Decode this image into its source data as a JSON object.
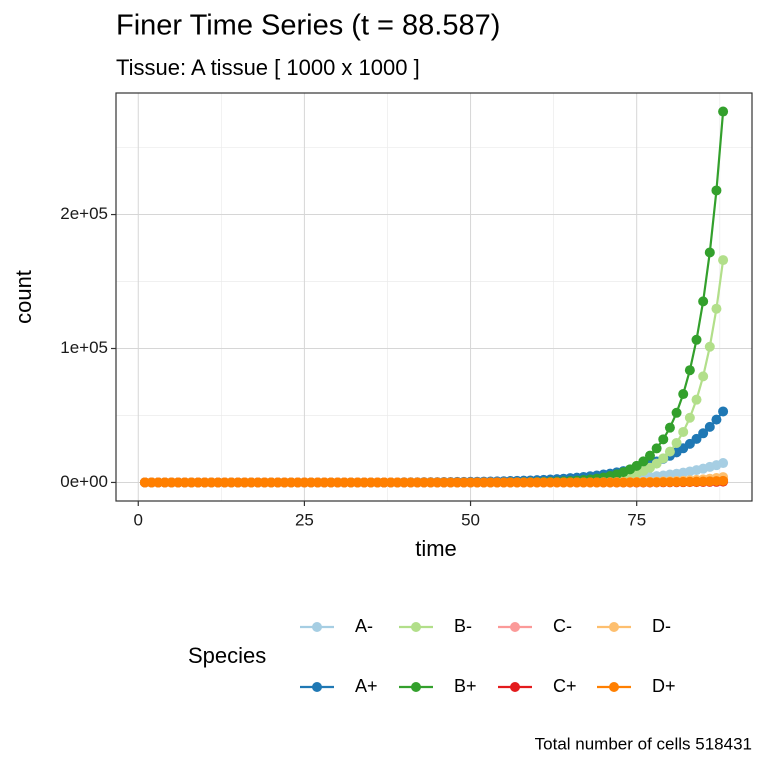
{
  "chart_data": {
    "type": "line",
    "title": "Finer Time Series (t = 88.587)",
    "subtitle": "Tissue: A tissue [ 1000 x 1000 ]",
    "x_label": "time",
    "y_label": "count",
    "legend_title": "Species",
    "caption": "Total number of cells 518431",
    "xlim": [
      -3.35,
      92.35
    ],
    "xticks": [
      0,
      25,
      50,
      75
    ],
    "xminor": [
      12.5,
      37.5,
      62.5,
      87.5
    ],
    "ylim": [
      -13845,
      290745
    ],
    "yticks": [
      {
        "value": 0,
        "label": "0e+00"
      },
      {
        "value": 100000,
        "label": "1e+05"
      },
      {
        "value": 200000,
        "label": "2e+05"
      }
    ],
    "yminor": [
      50000,
      150000,
      250000
    ],
    "grid": true,
    "x": [
      1,
      2,
      3,
      4,
      5,
      6,
      7,
      8,
      9,
      10,
      11,
      12,
      13,
      14,
      15,
      16,
      17,
      18,
      19,
      20,
      21,
      22,
      23,
      24,
      25,
      26,
      27,
      28,
      29,
      30,
      31,
      32,
      33,
      34,
      35,
      36,
      37,
      38,
      39,
      40,
      41,
      42,
      43,
      44,
      45,
      46,
      47,
      48,
      49,
      50,
      51,
      52,
      53,
      54,
      55,
      56,
      57,
      58,
      59,
      60,
      61,
      62,
      63,
      64,
      65,
      66,
      67,
      68,
      69,
      70,
      71,
      72,
      73,
      74,
      75,
      76,
      77,
      78,
      79,
      80,
      81,
      82,
      83,
      84,
      85,
      86,
      87,
      88
    ],
    "series": [
      {
        "name": "A-",
        "color": "#a6cee3",
        "values": [
          0,
          0,
          0,
          0,
          0,
          0,
          0,
          0,
          0,
          0,
          0,
          0,
          0,
          0,
          0,
          0,
          0,
          0,
          0,
          0,
          0,
          0,
          0,
          0,
          0,
          0,
          0,
          0,
          0,
          0,
          0,
          0,
          0,
          0,
          0,
          0,
          0,
          0,
          0,
          0,
          0,
          0,
          0,
          0,
          0,
          0,
          0,
          0,
          0,
          200,
          220,
          250,
          280,
          310,
          350,
          390,
          430,
          480,
          540,
          610,
          680,
          760,
          850,
          960,
          1070,
          1200,
          1350,
          1500,
          1700,
          1900,
          2100,
          2400,
          2700,
          3000,
          3300,
          3700,
          4200,
          4700,
          5200,
          5900,
          6500,
          7300,
          8200,
          9200,
          10300,
          11600,
          12900,
          14500
        ]
      },
      {
        "name": "A+",
        "color": "#1f78b4",
        "values": [
          0,
          0,
          0,
          0,
          0,
          0,
          0,
          0,
          0,
          0,
          0,
          0,
          0,
          0,
          0,
          0,
          0,
          0,
          0,
          0,
          0,
          0,
          0,
          0,
          0,
          0,
          0,
          0,
          0,
          0,
          0,
          0,
          0,
          0,
          0,
          0,
          0,
          0,
          0,
          150,
          170,
          190,
          210,
          240,
          270,
          310,
          350,
          400,
          450,
          510,
          570,
          650,
          730,
          820,
          930,
          1050,
          1200,
          1350,
          1500,
          1700,
          1950,
          2200,
          2500,
          2800,
          3200,
          3600,
          4100,
          4600,
          5200,
          5900,
          6600,
          7500,
          8500,
          9600,
          10800,
          12200,
          13800,
          15600,
          17700,
          19900,
          22500,
          25500,
          28800,
          32500,
          36700,
          41500,
          46900,
          53000
        ]
      },
      {
        "name": "B-",
        "color": "#b2df8a",
        "values": [
          0,
          0,
          0,
          0,
          0,
          0,
          0,
          0,
          0,
          0,
          0,
          0,
          0,
          0,
          0,
          0,
          0,
          0,
          0,
          0,
          0,
          0,
          0,
          0,
          0,
          0,
          0,
          0,
          0,
          0,
          0,
          0,
          0,
          0,
          0,
          0,
          0,
          0,
          0,
          0,
          0,
          0,
          0,
          0,
          0,
          0,
          0,
          0,
          0,
          0,
          0,
          0,
          0,
          0,
          0,
          0,
          0,
          100,
          130,
          170,
          210,
          270,
          350,
          450,
          570,
          730,
          930,
          1200,
          1500,
          1950,
          2500,
          3200,
          4100,
          5200,
          6700,
          8600,
          11000,
          14100,
          18000,
          23000,
          29500,
          37700,
          48300,
          61800,
          79200,
          101300,
          129700,
          166000
        ]
      },
      {
        "name": "B+",
        "color": "#33a02c",
        "values": [
          0,
          0,
          0,
          0,
          0,
          0,
          0,
          0,
          0,
          0,
          0,
          0,
          0,
          0,
          0,
          0,
          0,
          0,
          0,
          0,
          0,
          0,
          0,
          0,
          0,
          0,
          0,
          0,
          0,
          0,
          0,
          0,
          0,
          0,
          0,
          0,
          0,
          0,
          0,
          0,
          0,
          0,
          0,
          0,
          0,
          0,
          0,
          0,
          0,
          0,
          0,
          0,
          0,
          0,
          100,
          130,
          170,
          210,
          270,
          340,
          430,
          550,
          700,
          900,
          1100,
          1400,
          1800,
          2300,
          2900,
          3700,
          4800,
          6000,
          7700,
          9800,
          12400,
          15700,
          20000,
          25400,
          32200,
          40900,
          52000,
          66000,
          83800,
          106500,
          135200,
          171700,
          218000,
          276900
        ]
      },
      {
        "name": "C-",
        "color": "#fb9a99",
        "values": [
          0,
          0,
          0,
          0,
          0,
          0,
          0,
          0,
          0,
          0,
          0,
          0,
          0,
          0,
          0,
          0,
          0,
          0,
          0,
          0,
          0,
          0,
          0,
          0,
          0,
          0,
          0,
          0,
          0,
          0,
          0,
          0,
          0,
          0,
          0,
          0,
          0,
          0,
          0,
          0,
          0,
          0,
          0,
          0,
          0,
          0,
          0,
          0,
          0,
          0,
          0,
          0,
          0,
          0,
          0,
          0,
          0,
          0,
          0,
          0,
          0,
          0,
          0,
          0,
          0,
          0,
          0,
          0,
          0,
          90,
          110,
          130,
          160,
          190,
          230,
          280,
          330,
          400,
          480,
          580,
          690,
          830,
          1000,
          1200,
          1400,
          1700,
          2100,
          2500
        ]
      },
      {
        "name": "C+",
        "color": "#e31a1c",
        "values": [
          0,
          0,
          0,
          0,
          0,
          0,
          0,
          0,
          0,
          0,
          0,
          0,
          0,
          0,
          0,
          0,
          0,
          0,
          0,
          0,
          0,
          0,
          0,
          0,
          0,
          0,
          0,
          0,
          0,
          0,
          0,
          0,
          0,
          0,
          0,
          0,
          0,
          0,
          0,
          0,
          0,
          0,
          0,
          0,
          0,
          0,
          0,
          0,
          0,
          0,
          0,
          0,
          0,
          0,
          0,
          0,
          0,
          0,
          0,
          0,
          0,
          0,
          0,
          0,
          0,
          0,
          0,
          0,
          0,
          0,
          0,
          0,
          0,
          0,
          0,
          0,
          0,
          100,
          120,
          140,
          170,
          200,
          240,
          290,
          350,
          420,
          500,
          600
        ]
      },
      {
        "name": "D-",
        "color": "#fdbf6f",
        "values": [
          0,
          0,
          0,
          0,
          0,
          0,
          0,
          0,
          0,
          0,
          0,
          0,
          0,
          0,
          0,
          0,
          0,
          0,
          0,
          0,
          0,
          0,
          0,
          0,
          0,
          0,
          0,
          0,
          0,
          0,
          0,
          0,
          0,
          0,
          0,
          0,
          0,
          0,
          0,
          0,
          0,
          0,
          0,
          0,
          0,
          0,
          0,
          0,
          0,
          0,
          0,
          0,
          0,
          0,
          0,
          0,
          0,
          0,
          0,
          0,
          0,
          0,
          0,
          0,
          0,
          0,
          0,
          0,
          0,
          150,
          180,
          220,
          260,
          310,
          380,
          450,
          540,
          650,
          780,
          930,
          1100,
          1300,
          1600,
          1900,
          2300,
          2800,
          3300,
          4000
        ]
      },
      {
        "name": "D+",
        "color": "#ff7f00",
        "values": [
          0,
          0,
          0,
          0,
          0,
          0,
          0,
          0,
          0,
          0,
          0,
          0,
          0,
          0,
          0,
          0,
          0,
          0,
          0,
          0,
          0,
          0,
          0,
          0,
          0,
          0,
          0,
          0,
          0,
          0,
          0,
          0,
          0,
          0,
          0,
          0,
          0,
          0,
          0,
          0,
          0,
          0,
          0,
          0,
          0,
          0,
          0,
          0,
          0,
          0,
          0,
          0,
          0,
          0,
          0,
          0,
          0,
          0,
          0,
          0,
          0,
          0,
          0,
          0,
          0,
          0,
          0,
          0,
          0,
          0,
          0,
          0,
          0,
          90,
          110,
          130,
          160,
          190,
          230,
          280,
          330,
          400,
          480,
          580,
          690,
          830,
          1000,
          1200
        ]
      }
    ]
  }
}
